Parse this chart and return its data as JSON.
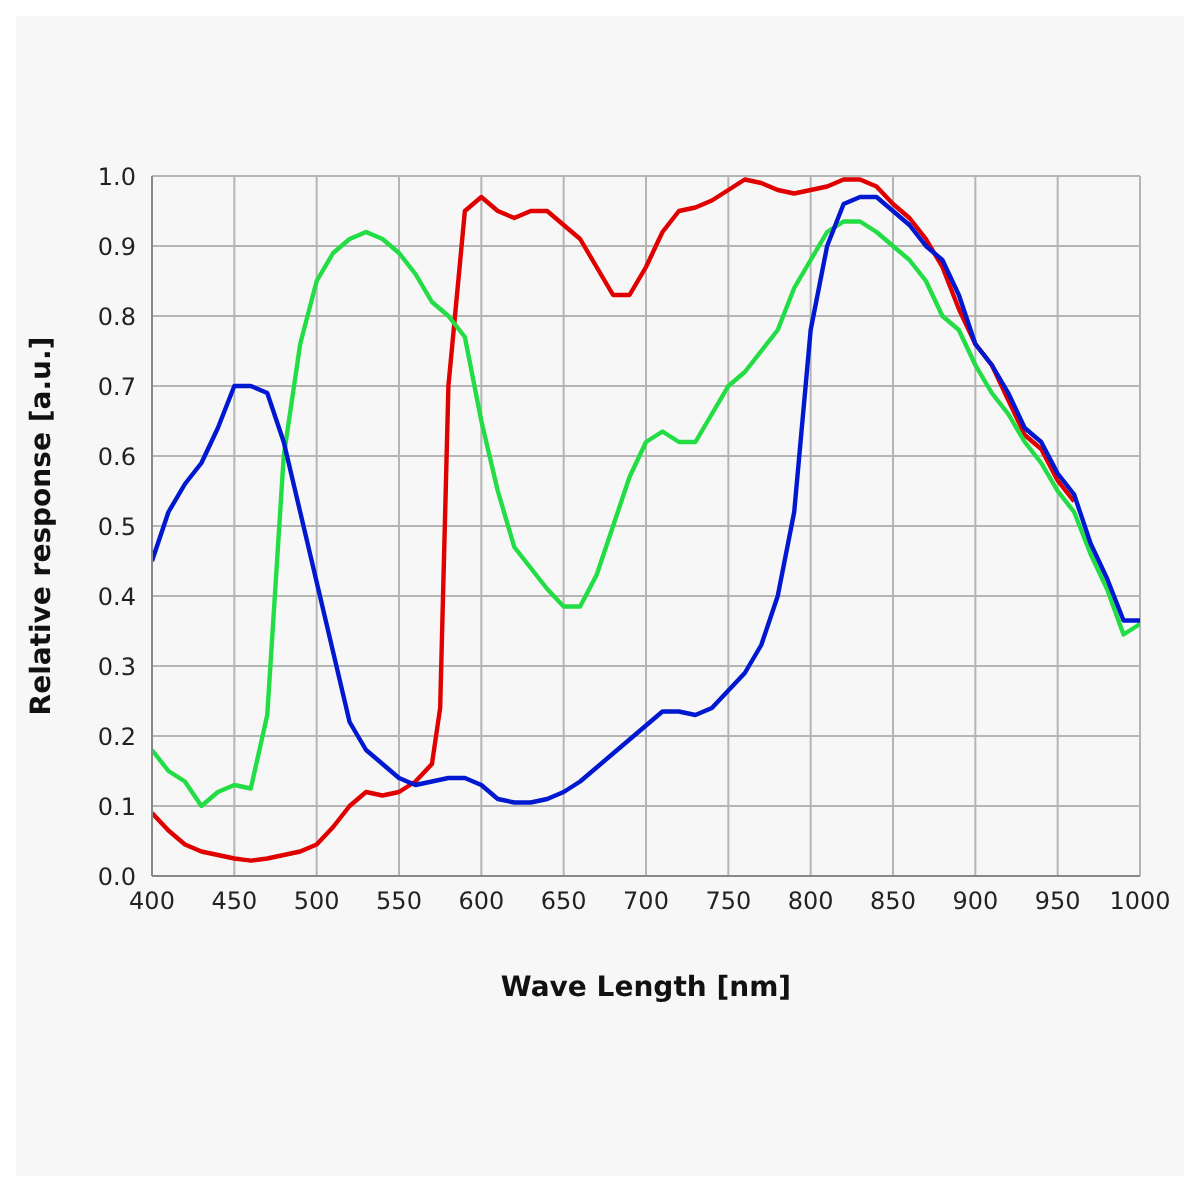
{
  "chart_data": {
    "type": "line",
    "xlabel": "Wave Length [nm]",
    "ylabel": "Relative  response [a.u.]",
    "x": [
      400,
      410,
      420,
      430,
      440,
      450,
      460,
      470,
      480,
      490,
      500,
      510,
      520,
      530,
      540,
      550,
      560,
      570,
      580,
      590,
      600,
      610,
      620,
      630,
      640,
      650,
      660,
      670,
      680,
      690,
      700,
      710,
      720,
      730,
      740,
      750,
      760,
      770,
      780,
      790,
      800,
      810,
      820,
      830,
      840,
      850,
      860,
      870,
      880,
      890,
      900,
      910,
      920,
      930,
      940,
      950,
      960,
      970,
      980,
      990,
      1000
    ],
    "series": [
      {
        "color": "#e00000",
        "x": [
          400,
          410,
          420,
          430,
          440,
          450,
          460,
          470,
          480,
          490,
          500,
          510,
          520,
          530,
          540,
          550,
          560,
          570,
          575,
          580,
          590,
          600,
          610,
          620,
          630,
          640,
          650,
          660,
          670,
          680,
          690,
          700,
          710,
          720,
          730,
          740,
          750,
          760,
          770,
          780,
          790,
          800,
          810,
          820,
          830,
          840,
          850,
          860,
          870,
          880,
          890,
          900,
          910,
          920,
          930,
          940,
          950,
          960
        ],
        "values": [
          0.09,
          0.065,
          0.045,
          0.035,
          0.03,
          0.025,
          0.022,
          0.025,
          0.03,
          0.035,
          0.045,
          0.07,
          0.1,
          0.12,
          0.115,
          0.12,
          0.135,
          0.16,
          0.24,
          0.7,
          0.95,
          0.97,
          0.95,
          0.94,
          0.95,
          0.95,
          0.93,
          0.91,
          0.87,
          0.83,
          0.83,
          0.87,
          0.92,
          0.95,
          0.955,
          0.965,
          0.98,
          0.995,
          0.99,
          0.98,
          0.975,
          0.98,
          0.985,
          0.995,
          0.995,
          0.985,
          0.96,
          0.94,
          0.91,
          0.87,
          0.81,
          0.76,
          0.73,
          0.68,
          0.63,
          0.61,
          0.565,
          0.535
        ]
      },
      {
        "color": "#22dd44",
        "values": [
          0.18,
          0.15,
          0.135,
          0.1,
          0.12,
          0.13,
          0.125,
          0.23,
          0.6,
          0.76,
          0.85,
          0.89,
          0.91,
          0.92,
          0.91,
          0.89,
          0.86,
          0.82,
          0.8,
          0.77,
          0.65,
          0.55,
          0.47,
          0.44,
          0.41,
          0.385,
          0.385,
          0.43,
          0.5,
          0.57,
          0.62,
          0.635,
          0.62,
          0.62,
          0.66,
          0.7,
          0.72,
          0.75,
          0.78,
          0.84,
          0.88,
          0.92,
          0.935,
          0.935,
          0.92,
          0.9,
          0.88,
          0.85,
          0.8,
          0.78,
          0.73,
          0.69,
          0.66,
          0.62,
          0.59,
          0.55,
          0.52,
          0.46,
          0.41,
          0.345,
          0.36
        ]
      },
      {
        "color": "#0018d0",
        "values": [
          0.45,
          0.52,
          0.56,
          0.59,
          0.64,
          0.7,
          0.7,
          0.69,
          0.62,
          0.52,
          0.42,
          0.32,
          0.22,
          0.18,
          0.16,
          0.14,
          0.13,
          0.135,
          0.14,
          0.14,
          0.13,
          0.11,
          0.105,
          0.105,
          0.11,
          0.12,
          0.135,
          0.155,
          0.175,
          0.195,
          0.215,
          0.235,
          0.235,
          0.23,
          0.24,
          0.265,
          0.29,
          0.33,
          0.4,
          0.52,
          0.78,
          0.9,
          0.96,
          0.97,
          0.97,
          0.95,
          0.93,
          0.9,
          0.88,
          0.83,
          0.76,
          0.73,
          0.69,
          0.64,
          0.62,
          0.575,
          0.545,
          0.475,
          0.425,
          0.365,
          0.365
        ]
      }
    ],
    "xlim": [
      400,
      1000
    ],
    "xticks": [
      400,
      450,
      500,
      550,
      600,
      650,
      700,
      750,
      800,
      850,
      900,
      950,
      1000
    ],
    "ylim": [
      0,
      1
    ],
    "yticks": [
      {
        "value": 0,
        "label": "0.0"
      },
      {
        "value": 0.1,
        "label": "0.1"
      },
      {
        "value": 0.2,
        "label": "0.2"
      },
      {
        "value": 0.3,
        "label": "0.3"
      },
      {
        "value": 0.4,
        "label": "0.4"
      },
      {
        "value": 0.5,
        "label": "0.5"
      },
      {
        "value": 0.6,
        "label": "0.6"
      },
      {
        "value": 0.7,
        "label": "0.7"
      },
      {
        "value": 0.8,
        "label": "0.8"
      },
      {
        "value": 0.9,
        "label": "0.9"
      },
      {
        "value": 1,
        "label": "1.0"
      }
    ],
    "grid": true,
    "legend": false,
    "marker": "none",
    "line_style": "solid"
  }
}
